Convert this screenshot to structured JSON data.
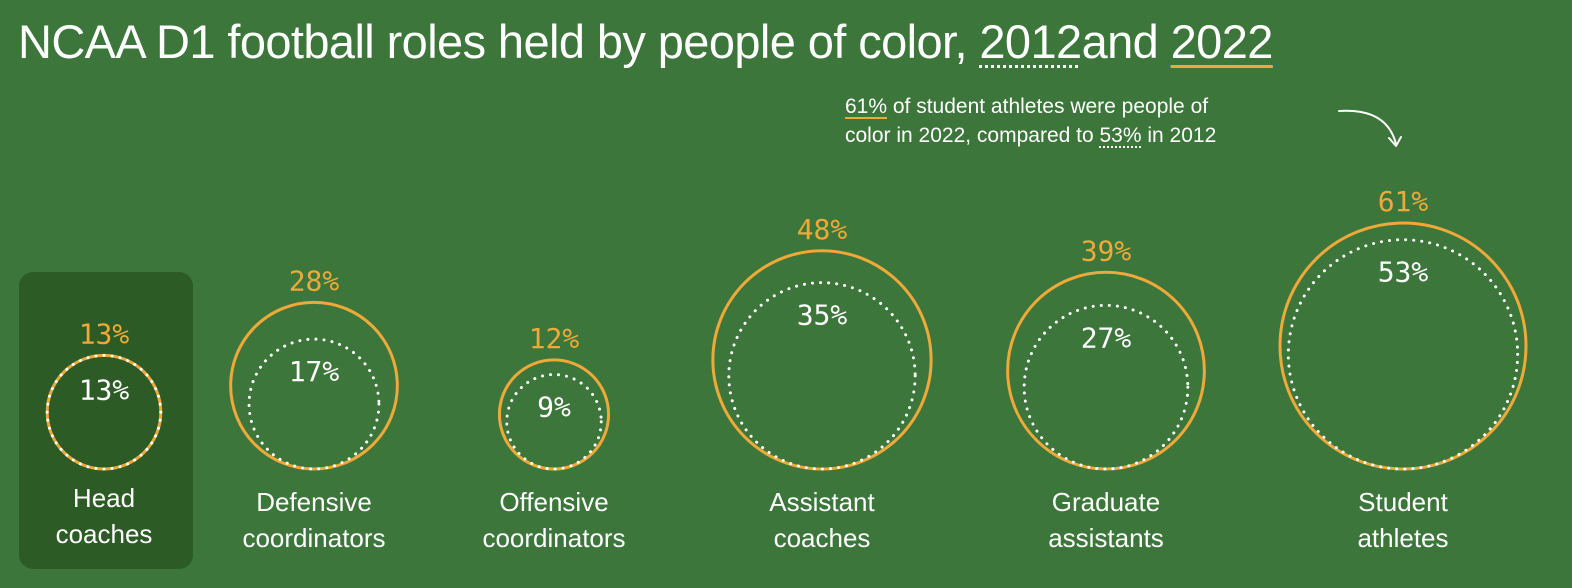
{
  "title": {
    "prefix": "NCAA D1 football roles held by people of color, ",
    "year_2012": "2012",
    "middle": "and ",
    "year_2022": "2022"
  },
  "annotation": {
    "val_2022": "61%",
    "line1_rest": " of student athletes were people of",
    "line2_pre": "color in 2022, compared to ",
    "val_2012": "53%",
    "line2_post": " in 2012"
  },
  "colors": {
    "background": "#3c763a",
    "highlight_box": "#2d5b26",
    "series_2022": "#eea93a",
    "series_2012": "#ffffff"
  },
  "chart_data": {
    "type": "bubble",
    "title": "NCAA D1 football roles held by people of color, 2012and 2022",
    "categories": [
      "Head coaches",
      "Defensive coordinators",
      "Offensive coordinators",
      "Assistant coaches",
      "Graduate assistants",
      "Student athletes"
    ],
    "category_lines": [
      [
        "Head",
        "coaches"
      ],
      [
        "Defensive",
        "coordinators"
      ],
      [
        "Offensive",
        "coordinators"
      ],
      [
        "Assistant",
        "coaches"
      ],
      [
        "Graduate",
        "assistants"
      ],
      [
        "Student",
        "athletes"
      ]
    ],
    "series": [
      {
        "name": "2022",
        "values": [
          13,
          28,
          12,
          48,
          39,
          61
        ],
        "labels": [
          "13%",
          "28%",
          "12%",
          "48%",
          "39%",
          "61%"
        ],
        "style": "solid",
        "color": "#eea93a"
      },
      {
        "name": "2012",
        "values": [
          13,
          17,
          9,
          35,
          27,
          53
        ],
        "labels": [
          "13%",
          "17%",
          "9%",
          "35%",
          "27%",
          "53%"
        ],
        "style": "dotted",
        "color": "#ffffff"
      }
    ],
    "highlighted_category": "Head coaches",
    "encoding": "circle area proportional to share"
  }
}
